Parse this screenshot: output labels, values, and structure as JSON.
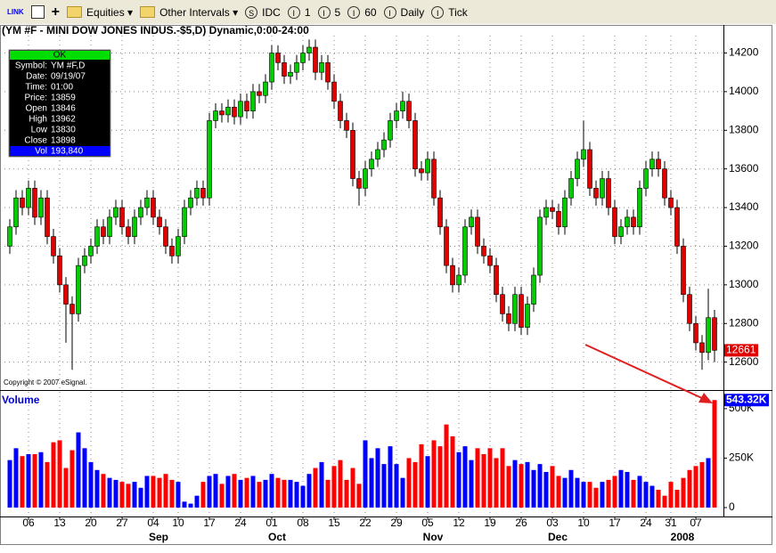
{
  "toolbar": {
    "items": [
      "Equities",
      "Other Intervals",
      "IDC",
      "1",
      "5",
      "60",
      "Daily",
      "Tick"
    ]
  },
  "info_box": {
    "status": "OK",
    "rows": [
      {
        "label": "Symbol:",
        "value": "YM #F,D"
      },
      {
        "label": "Date:",
        "value": "09/19/07"
      },
      {
        "label": "Time:",
        "value": "01:00"
      },
      {
        "label": "Price:",
        "value": "13859"
      },
      {
        "label": "Open",
        "value": "13846"
      },
      {
        "label": "High",
        "value": "13962"
      },
      {
        "label": "Low",
        "value": "13830"
      },
      {
        "label": "Close",
        "value": "13898"
      },
      {
        "label": "Vol",
        "value": "193,840"
      }
    ]
  },
  "chart_data": [
    {
      "type": "candlestick",
      "title": "(YM #F - MINI DOW JONES INDUS.-$5,D) Dynamic,0:00-24:00",
      "copyright": "Copyright © 2007 eSignal.",
      "up_color": "#00cc00",
      "down_color": "#e00000",
      "categories": [
        null,
        null,
        null,
        "06",
        null,
        null,
        null,
        null,
        "13",
        null,
        null,
        null,
        null,
        "20",
        null,
        null,
        null,
        null,
        "27",
        null,
        null,
        null,
        null,
        "04",
        null,
        null,
        null,
        "10",
        null,
        null,
        null,
        null,
        "17",
        null,
        null,
        null,
        null,
        "24",
        null,
        null,
        null,
        null,
        "01",
        null,
        null,
        null,
        null,
        "08",
        null,
        null,
        null,
        null,
        "15",
        null,
        null,
        null,
        null,
        "22",
        null,
        null,
        null,
        null,
        "29",
        null,
        null,
        null,
        null,
        "05",
        null,
        null,
        null,
        null,
        "12",
        null,
        null,
        null,
        null,
        "19",
        null,
        null,
        null,
        null,
        "26",
        null,
        null,
        null,
        null,
        "03",
        null,
        null,
        null,
        null,
        "10",
        null,
        null,
        null,
        null,
        "17",
        null,
        null,
        null,
        null,
        "24",
        null,
        null,
        null,
        "31",
        null,
        null,
        null,
        "07",
        null,
        null,
        null
      ],
      "periods": [
        null,
        null,
        null,
        null,
        null,
        null,
        null,
        null,
        null,
        null,
        null,
        null,
        null,
        null,
        null,
        null,
        null,
        null,
        null,
        null,
        null,
        null,
        null,
        "Sep",
        null,
        null,
        null,
        null,
        null,
        null,
        null,
        null,
        null,
        null,
        null,
        null,
        null,
        null,
        null,
        null,
        null,
        null,
        "Oct",
        null,
        null,
        null,
        null,
        null,
        null,
        null,
        null,
        null,
        null,
        null,
        null,
        null,
        null,
        null,
        null,
        null,
        null,
        null,
        null,
        null,
        null,
        null,
        null,
        "Nov",
        null,
        null,
        null,
        null,
        null,
        null,
        null,
        null,
        null,
        null,
        null,
        null,
        null,
        null,
        null,
        null,
        null,
        null,
        null,
        "Dec",
        null,
        null,
        null,
        null,
        null,
        null,
        null,
        null,
        null,
        null,
        null,
        null,
        null,
        null,
        null,
        null,
        null,
        null,
        null,
        "2008",
        null,
        null,
        null,
        null,
        null,
        null
      ],
      "open": [
        13200,
        13300,
        13450,
        13400,
        13500,
        13350,
        13450,
        13250,
        13150,
        13000,
        12900,
        12850,
        13100,
        13150,
        13200,
        13300,
        13250,
        13350,
        13400,
        13300,
        13250,
        13350,
        13400,
        13450,
        13350,
        13300,
        13200,
        13150,
        13250,
        13400,
        13450,
        13500,
        13450,
        13850,
        13900,
        13880,
        13920,
        13870,
        13950,
        13900,
        14000,
        13980,
        14050,
        14200,
        14150,
        14080,
        14100,
        14150,
        14200,
        14230,
        14100,
        14150,
        14050,
        13950,
        13850,
        13800,
        13550,
        13500,
        13600,
        13650,
        13700,
        13750,
        13850,
        13900,
        13950,
        13850,
        13600,
        13580,
        13650,
        13450,
        13300,
        13100,
        13000,
        13050,
        13300,
        13350,
        13200,
        13150,
        13100,
        12950,
        12850,
        12800,
        12950,
        12780,
        12900,
        13050,
        13350,
        13400,
        13380,
        13300,
        13450,
        13550,
        13650,
        13700,
        13500,
        13450,
        13550,
        13400,
        13250,
        13300,
        13350,
        13300,
        13500,
        13600,
        13650,
        13600,
        13450,
        13400,
        13200,
        12950,
        12800,
        12700,
        12650,
        12830
      ],
      "high": [
        13340,
        13490,
        13490,
        13540,
        13540,
        13490,
        13490,
        13290,
        13190,
        13040,
        12940,
        13140,
        13190,
        13240,
        13340,
        13340,
        13390,
        13440,
        13440,
        13340,
        13390,
        13440,
        13490,
        13490,
        13390,
        13340,
        13240,
        13290,
        13440,
        13490,
        13540,
        13540,
        13890,
        13940,
        13940,
        13960,
        13960,
        13990,
        13990,
        14040,
        14040,
        14090,
        14240,
        14240,
        14190,
        14140,
        14190,
        14240,
        14270,
        14270,
        14190,
        14190,
        14090,
        13990,
        13890,
        13840,
        13590,
        13640,
        13690,
        13740,
        13790,
        13890,
        13940,
        14000,
        13990,
        13890,
        13640,
        13690,
        13690,
        13490,
        13340,
        13140,
        13090,
        13340,
        13390,
        13390,
        13240,
        13190,
        13140,
        12990,
        12890,
        12990,
        12990,
        12940,
        13090,
        13390,
        13440,
        13440,
        13420,
        13490,
        13590,
        13690,
        13850,
        13740,
        13540,
        13590,
        13590,
        13440,
        13340,
        13390,
        13390,
        13540,
        13640,
        13690,
        13690,
        13640,
        13490,
        13440,
        13240,
        12990,
        12840,
        12740,
        12980,
        12870
      ],
      "low": [
        13160,
        13260,
        13360,
        13360,
        13310,
        13310,
        13210,
        13110,
        12960,
        12700,
        12560,
        12810,
        13060,
        13110,
        13160,
        13210,
        13210,
        13310,
        13260,
        13210,
        13210,
        13310,
        13360,
        13310,
        13260,
        13160,
        13110,
        13110,
        13210,
        13360,
        13410,
        13410,
        13410,
        13810,
        13840,
        13840,
        13830,
        13830,
        13860,
        13860,
        13940,
        13940,
        14010,
        14110,
        14040,
        14040,
        14060,
        14110,
        14160,
        14060,
        14060,
        14010,
        13910,
        13810,
        13760,
        13510,
        13410,
        13460,
        13560,
        13610,
        13660,
        13710,
        13810,
        13860,
        13810,
        13560,
        13540,
        13540,
        13410,
        13260,
        13060,
        12960,
        12960,
        13010,
        13260,
        13160,
        13110,
        13060,
        12910,
        12810,
        12760,
        12760,
        12740,
        12740,
        12860,
        13010,
        13310,
        13340,
        13260,
        13260,
        13410,
        13510,
        13610,
        13460,
        13410,
        13410,
        13360,
        13210,
        13210,
        13260,
        13260,
        13260,
        13460,
        13560,
        13560,
        13410,
        13360,
        13160,
        12910,
        12760,
        12660,
        12560,
        12610,
        12600
      ],
      "close": [
        13300,
        13450,
        13400,
        13500,
        13350,
        13450,
        13250,
        13150,
        13000,
        12900,
        12850,
        13100,
        13150,
        13200,
        13300,
        13250,
        13350,
        13400,
        13300,
        13250,
        13350,
        13400,
        13450,
        13350,
        13300,
        13200,
        13150,
        13250,
        13400,
        13450,
        13500,
        13450,
        13850,
        13900,
        13880,
        13920,
        13870,
        13950,
        13900,
        14000,
        13980,
        14050,
        14200,
        14150,
        14080,
        14100,
        14150,
        14200,
        14230,
        14100,
        14150,
        14050,
        13950,
        13850,
        13800,
        13550,
        13500,
        13600,
        13650,
        13700,
        13750,
        13850,
        13900,
        13950,
        13850,
        13600,
        13580,
        13650,
        13450,
        13300,
        13100,
        13000,
        13050,
        13300,
        13350,
        13200,
        13150,
        13100,
        12950,
        12850,
        12800,
        12950,
        12780,
        12900,
        13050,
        13350,
        13400,
        13380,
        13300,
        13450,
        13550,
        13650,
        13700,
        13500,
        13450,
        13550,
        13400,
        13250,
        13300,
        13350,
        13300,
        13500,
        13600,
        13650,
        13600,
        13450,
        13400,
        13200,
        12950,
        12800,
        12700,
        12650,
        12830,
        12661
      ],
      "ylim": [
        12460,
        14290
      ],
      "yticks": [
        12600,
        12800,
        13000,
        13200,
        13400,
        13600,
        13800,
        14000,
        14200
      ],
      "grid": true
    },
    {
      "type": "bar",
      "title": "Volume",
      "up_color": "#0000ff",
      "down_color": "#ff0000",
      "values": [
        240000,
        300000,
        260000,
        270000,
        270000,
        280000,
        230000,
        330000,
        340000,
        200000,
        290000,
        380000,
        300000,
        230000,
        190000,
        170000,
        150000,
        140000,
        130000,
        120000,
        130000,
        100000,
        160000,
        160000,
        150000,
        170000,
        140000,
        130000,
        30000,
        20000,
        60000,
        130000,
        160000,
        170000,
        120000,
        160000,
        170000,
        140000,
        150000,
        160000,
        130000,
        140000,
        170000,
        150000,
        140000,
        140000,
        130000,
        110000,
        170000,
        200000,
        230000,
        140000,
        210000,
        240000,
        140000,
        200000,
        120000,
        340000,
        250000,
        300000,
        220000,
        310000,
        220000,
        150000,
        250000,
        230000,
        320000,
        260000,
        340000,
        310000,
        420000,
        360000,
        280000,
        310000,
        240000,
        300000,
        270000,
        300000,
        250000,
        300000,
        210000,
        240000,
        220000,
        230000,
        190000,
        220000,
        180000,
        210000,
        160000,
        150000,
        190000,
        150000,
        130000,
        130000,
        100000,
        130000,
        140000,
        160000,
        190000,
        180000,
        140000,
        160000,
        130000,
        110000,
        90000,
        60000,
        130000,
        90000,
        150000,
        190000,
        210000,
        230000,
        250000,
        543320
      ],
      "value_labels": [
        null,
        null,
        null,
        null,
        null,
        null,
        null,
        null,
        null,
        null,
        null,
        null,
        null,
        null,
        null,
        null,
        null,
        null,
        null,
        null,
        null,
        null,
        null,
        null,
        null,
        null,
        null,
        null,
        null,
        null,
        null,
        null,
        null,
        null,
        null,
        null,
        null,
        null,
        null,
        null,
        null,
        null,
        null,
        null,
        null,
        null,
        null,
        null,
        null,
        null,
        null,
        null,
        null,
        null,
        null,
        null,
        null,
        null,
        null,
        null,
        null,
        null,
        null,
        null,
        null,
        null,
        null,
        null,
        null,
        null,
        null,
        null,
        null,
        null,
        null,
        null,
        null,
        null,
        null,
        null,
        null,
        null,
        null,
        null,
        null,
        null,
        null,
        null,
        null,
        null,
        null,
        null,
        null,
        null,
        null,
        null,
        null,
        null,
        null,
        null,
        null,
        null,
        null,
        null,
        null,
        null,
        null,
        null,
        null,
        null,
        null,
        null,
        null,
        "543.32K"
      ],
      "ylim": [
        -45000,
        585000
      ],
      "yticks": [
        0,
        {
          "value": 250000,
          "label": "250K"
        },
        {
          "value": 500000,
          "label": "500K"
        }
      ]
    }
  ]
}
